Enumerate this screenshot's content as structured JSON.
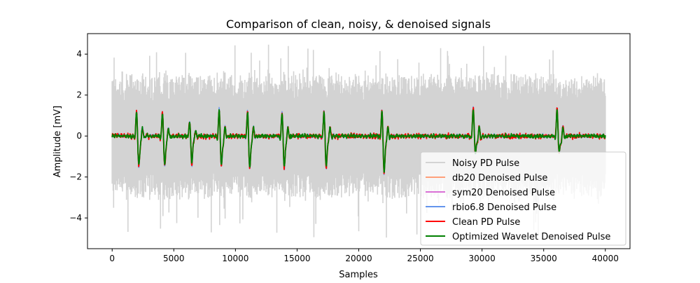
{
  "chart_data": {
    "type": "line",
    "title": "Comparison of clean, noisy, & denoised signals",
    "xlabel": "Samples",
    "ylabel": "Amplitude [mV]",
    "xlim": [
      -2000,
      42000
    ],
    "ylim": [
      -5.5,
      5.0
    ],
    "x_ticks": [
      0,
      5000,
      10000,
      15000,
      20000,
      25000,
      30000,
      35000,
      40000
    ],
    "x_tick_labels": [
      "0",
      "5000",
      "10000",
      "15000",
      "20000",
      "25000",
      "30000",
      "35000",
      "40000"
    ],
    "y_ticks": [
      -4,
      -2,
      0,
      2,
      4
    ],
    "y_tick_labels": [
      "−4",
      "−2",
      "0",
      "2",
      "4"
    ],
    "grid": false,
    "legend_position": "lower-right",
    "pulses": [
      {
        "x": 2000,
        "peak": 1.3,
        "trough": -1.5
      },
      {
        "x": 4100,
        "peak": 1.2,
        "trough": -1.45
      },
      {
        "x": 6300,
        "peak": 0.75,
        "trough": -1.35
      },
      {
        "x": 8700,
        "peak": 1.35,
        "trough": -1.45
      },
      {
        "x": 11000,
        "peak": 1.25,
        "trough": -1.55
      },
      {
        "x": 13800,
        "peak": 1.2,
        "trough": -1.55
      },
      {
        "x": 17200,
        "peak": 1.3,
        "trough": -1.5
      },
      {
        "x": 21900,
        "peak": 1.3,
        "trough": -1.75
      },
      {
        "x": 29300,
        "peak": 1.45,
        "trough": -0.8
      },
      {
        "x": 36100,
        "peak": 1.35,
        "trough": -0.8
      }
    ],
    "noise_envelope": {
      "typical_max": 3.0,
      "typical_min": -3.0,
      "extreme_max": 4.5,
      "extreme_min": -5.0
    },
    "series": [
      {
        "name": "Noisy PD Pulse",
        "color": "#d3d3d3"
      },
      {
        "name": "db20 Denoised Pulse",
        "color": "#ffa07a"
      },
      {
        "name": "sym20 Denoised Pulse",
        "color": "#da70d6"
      },
      {
        "name": "rbio6.8 Denoised Pulse",
        "color": "#6495ed"
      },
      {
        "name": "Clean PD Pulse",
        "color": "#ff0000"
      },
      {
        "name": "Optimized Wavelet Denoised Pulse",
        "color": "#008000"
      }
    ]
  }
}
